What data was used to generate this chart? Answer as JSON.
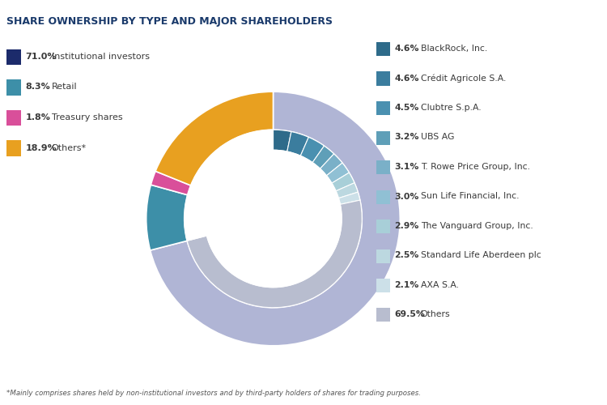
{
  "title": "SHARE OWNERSHIP BY TYPE AND MAJOR SHAREHOLDERS",
  "title_color": "#1a3a6b",
  "footnote": "*Mainly comprises shares held by non-institutional investors and by third-party holders of shares for trading purposes.",
  "inner_labels": [
    "Institutional investors",
    "Retail",
    "Treasury shares",
    "Others*"
  ],
  "inner_values": [
    71.0,
    8.3,
    1.8,
    18.9
  ],
  "inner_colors": [
    "#1c2b6b",
    "#3d8fa8",
    "#d94f9a",
    "#e8a020"
  ],
  "inner_pct": [
    "71.0%",
    "8.3%",
    "1.8%",
    "18.9%"
  ],
  "outer_labels": [
    "BlackRock, Inc.",
    "Crédit Agricole S.A.",
    "Clubtre S.p.A.",
    "UBS AG",
    "T. Rowe Price Group, Inc.",
    "Sun Life Financial, Inc.",
    "The Vanguard Group, Inc.",
    "Standard Life Aberdeen plc",
    "AXA S.A.",
    "Others"
  ],
  "outer_values": [
    4.6,
    4.6,
    4.5,
    3.2,
    3.1,
    3.0,
    2.9,
    2.5,
    2.1,
    69.5
  ],
  "outer_colors": [
    "#2e6b8a",
    "#3b7d9e",
    "#4a90b0",
    "#5f9fb8",
    "#7ab0c8",
    "#90c0d4",
    "#a8cfd8",
    "#bcd8e0",
    "#cce0e8",
    "#b8bdcf"
  ],
  "outer_pct": [
    "4.6%",
    "4.6%",
    "4.5%",
    "3.2%",
    "3.1%",
    "3.0%",
    "2.9%",
    "2.5%",
    "2.1%",
    "69.5%"
  ],
  "bg_color": "#ffffff",
  "text_color": "#3a3a3a"
}
